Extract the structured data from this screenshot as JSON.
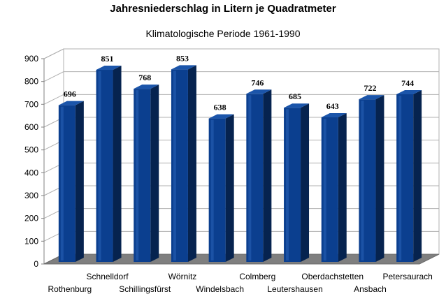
{
  "chart_data": {
    "type": "bar",
    "title": "Jahresniederschlag in Litern je Quadratmeter",
    "subtitle": "Klimatologische Periode 1961-1990",
    "categories": [
      "Rothenburg",
      "Schnelldorf",
      "Schillingsfürst",
      "Wörnitz",
      "Windelsbach",
      "Colmberg",
      "Leutershausen",
      "Oberdachstetten",
      "Ansbach",
      "Petersaurach"
    ],
    "values": [
      696,
      851,
      768,
      853,
      638,
      746,
      685,
      643,
      722,
      744
    ],
    "ylim": [
      0,
      900
    ],
    "yticks": [
      0,
      100,
      200,
      300,
      400,
      500,
      600,
      700,
      800,
      900
    ],
    "grid": true,
    "bar_color": "#0b3f8f",
    "bar_side_color": "#06234f",
    "bar_top_color": "#1b55aa",
    "floor_color": "#7f7f7f"
  }
}
